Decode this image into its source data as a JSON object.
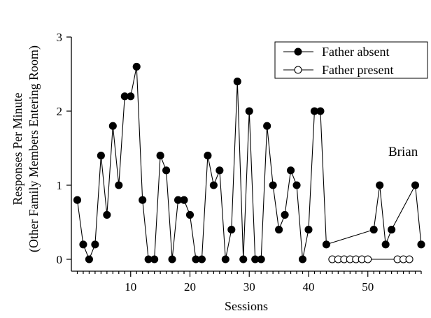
{
  "chart_data": {
    "type": "line",
    "xlabel": "Sessions",
    "ylabel_line1": "Responses Per Minute",
    "ylabel_line2": "(Other Family Members Entering Room)",
    "xlim": [
      0,
      59
    ],
    "ylim": [
      0,
      3
    ],
    "x_ticks": [
      10,
      20,
      30,
      40,
      50
    ],
    "y_ticks": [
      0,
      1,
      2,
      3
    ],
    "grid": false,
    "legend_position": "top-right",
    "annotation": "Brian",
    "series": [
      {
        "name": "Father absent",
        "marker": "filled-circle",
        "color": "#000000",
        "points": [
          [
            1,
            0.8
          ],
          [
            2,
            0.2
          ],
          [
            3,
            0
          ],
          [
            4,
            0.2
          ],
          [
            5,
            1.4
          ],
          [
            6,
            0.6
          ],
          [
            7,
            1.8
          ],
          [
            8,
            1.0
          ],
          [
            9,
            2.2
          ],
          [
            10,
            2.2
          ],
          [
            11,
            2.6
          ],
          [
            12,
            0.8
          ],
          [
            13,
            0
          ],
          [
            14,
            0
          ],
          [
            15,
            1.4
          ],
          [
            16,
            1.2
          ],
          [
            17,
            0
          ],
          [
            18,
            0.8
          ],
          [
            19,
            0.8
          ],
          [
            20,
            0.6
          ],
          [
            21,
            0
          ],
          [
            22,
            0
          ],
          [
            23,
            1.4
          ],
          [
            24,
            1.0
          ],
          [
            25,
            1.2
          ],
          [
            26,
            0
          ],
          [
            27,
            0.4
          ],
          [
            28,
            2.4
          ],
          [
            29,
            0
          ],
          [
            30,
            2.0
          ],
          [
            31,
            0
          ],
          [
            32,
            0
          ],
          [
            33,
            1.8
          ],
          [
            34,
            1.0
          ],
          [
            35,
            0.4
          ],
          [
            36,
            0.6
          ],
          [
            37,
            1.2
          ],
          [
            38,
            1.0
          ],
          [
            39,
            0
          ],
          [
            40,
            0.4
          ],
          [
            41,
            2.0
          ],
          [
            42,
            2.0
          ],
          [
            43,
            0.2
          ],
          [
            51,
            0.4
          ],
          [
            52,
            1.0
          ],
          [
            53,
            0.2
          ],
          [
            54,
            0.4
          ],
          [
            58,
            1.0
          ],
          [
            59,
            0.2
          ]
        ]
      },
      {
        "name": "Father present",
        "marker": "open-circle",
        "color": "#000000",
        "points": [
          [
            44,
            0
          ],
          [
            45,
            0
          ],
          [
            46,
            0
          ],
          [
            47,
            0
          ],
          [
            48,
            0
          ],
          [
            49,
            0
          ],
          [
            50,
            0
          ],
          [
            55,
            0
          ],
          [
            56,
            0
          ],
          [
            57,
            0
          ]
        ]
      }
    ]
  }
}
